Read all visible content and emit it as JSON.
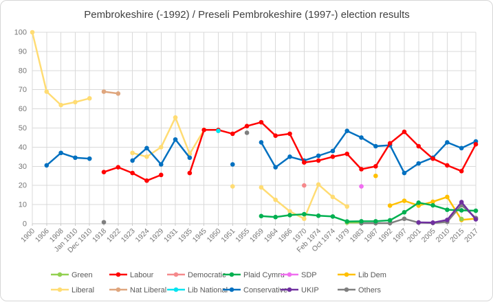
{
  "chart_data": {
    "type": "line",
    "title": "Pembrokeshire (-1992) / Preseli Pembrokeshire (1997-) election results",
    "xlabel": "",
    "ylabel": "",
    "ylim": [
      0,
      100
    ],
    "ytick_interval": 10,
    "grid": true,
    "legend_position": "bottom",
    "categories": [
      "1900",
      "1906",
      "1908",
      "Jan 1910",
      "Dec 1910",
      "1918",
      "1922",
      "1923",
      "1924",
      "1929",
      "1931",
      "1935",
      "1945",
      "1950",
      "1951",
      "1955",
      "1959",
      "1964",
      "1966",
      "1970",
      "Feb 1974",
      "Oct 1974",
      "1979",
      "1983",
      "1987",
      "1992",
      "1997",
      "2001",
      "2005",
      "2010",
      "2015",
      "2017"
    ],
    "series": [
      {
        "name": "Liberal",
        "color": "#FFDC73",
        "values": [
          100,
          69,
          62,
          63.5,
          65.5,
          null,
          null,
          37,
          35,
          40,
          55.5,
          36.5,
          49,
          null,
          19.5,
          null,
          19,
          12.5,
          6.5,
          2.6,
          20.5,
          14,
          9,
          null,
          null,
          null,
          null,
          null,
          null,
          null,
          null,
          null
        ]
      },
      {
        "name": "Nat Liberal",
        "color": "#DFA67E",
        "values": [
          null,
          null,
          null,
          null,
          null,
          69,
          68,
          null,
          null,
          null,
          null,
          null,
          null,
          null,
          null,
          null,
          null,
          null,
          null,
          null,
          null,
          null,
          null,
          null,
          null,
          null,
          null,
          null,
          null,
          null,
          null,
          null
        ]
      },
      {
        "name": "Democratic",
        "color": "#F5898C",
        "values": [
          null,
          null,
          null,
          null,
          null,
          null,
          null,
          null,
          null,
          null,
          null,
          null,
          null,
          null,
          null,
          null,
          null,
          null,
          null,
          20,
          null,
          null,
          null,
          null,
          null,
          null,
          null,
          null,
          null,
          null,
          null,
          null
        ]
      },
      {
        "name": "SDP",
        "color": "#F06EF0",
        "values": [
          null,
          null,
          null,
          null,
          null,
          null,
          null,
          null,
          null,
          null,
          null,
          null,
          null,
          null,
          null,
          null,
          null,
          null,
          null,
          null,
          null,
          null,
          null,
          19.5,
          null,
          null,
          null,
          null,
          null,
          null,
          null,
          null
        ]
      },
      {
        "name": "Lib Dem",
        "color": "#FFC000",
        "values": [
          null,
          null,
          null,
          null,
          null,
          null,
          null,
          null,
          null,
          null,
          null,
          null,
          null,
          null,
          null,
          null,
          null,
          null,
          null,
          null,
          null,
          null,
          null,
          null,
          null,
          9.5,
          12,
          9.5,
          11.5,
          14,
          2,
          2.7
        ],
        "isolated": [
          {
            "category": "1987",
            "value": 25
          }
        ]
      },
      {
        "name": "Green",
        "color": "#92D050",
        "values": [
          null,
          null,
          null,
          null,
          null,
          null,
          null,
          null,
          null,
          null,
          null,
          null,
          null,
          null,
          null,
          null,
          null,
          null,
          null,
          null,
          null,
          null,
          0.6,
          0.6,
          null,
          null,
          null,
          null,
          null,
          null,
          2.5,
          null
        ]
      },
      {
        "name": "Others",
        "color": "#7F7F7F",
        "values": [
          null,
          null,
          null,
          null,
          null,
          0.8,
          null,
          null,
          null,
          null,
          null,
          null,
          null,
          null,
          null,
          47.5,
          null,
          null,
          null,
          null,
          null,
          null,
          null,
          0.3,
          0.3,
          0.3,
          2.6,
          0.6,
          0.4,
          1,
          9.7,
          3
        ]
      },
      {
        "name": "Plaid Cymru",
        "color": "#00B050",
        "values": [
          null,
          null,
          null,
          null,
          null,
          null,
          null,
          null,
          null,
          null,
          null,
          null,
          null,
          null,
          null,
          null,
          4,
          3.5,
          4.5,
          5,
          4.2,
          3.8,
          1.2,
          1.3,
          1.3,
          1.8,
          6,
          11,
          9.6,
          7.3,
          7,
          6.8
        ]
      },
      {
        "name": "UKIP",
        "color": "#7030A0",
        "values": [
          null,
          null,
          null,
          null,
          null,
          null,
          null,
          null,
          null,
          null,
          null,
          null,
          null,
          null,
          null,
          null,
          null,
          null,
          null,
          null,
          null,
          null,
          null,
          null,
          null,
          null,
          null,
          0.7,
          0.6,
          2,
          11.3,
          2.3
        ]
      },
      {
        "name": "Conservative",
        "color": "#0070C0",
        "values": [
          null,
          30.5,
          37,
          34.5,
          34,
          null,
          null,
          33,
          39.5,
          31,
          44,
          34.5,
          null,
          null,
          31,
          null,
          42.5,
          29.5,
          35,
          33,
          35.5,
          38,
          48.5,
          45,
          40.5,
          41,
          26.5,
          31.5,
          34.5,
          42.5,
          39.5,
          43
        ]
      },
      {
        "name": "Labour",
        "color": "#FF0000",
        "values": [
          null,
          null,
          null,
          null,
          null,
          27,
          29.5,
          26.5,
          22.5,
          25.5,
          null,
          26.5,
          49,
          49,
          47,
          51,
          53,
          46,
          47,
          32,
          33,
          35,
          36.5,
          28.5,
          30,
          42,
          48,
          40.5,
          34,
          30.5,
          27.5,
          41.5
        ]
      },
      {
        "name": "Lib National",
        "color": "#00E4F0",
        "values": [
          null,
          null,
          null,
          null,
          null,
          null,
          null,
          null,
          null,
          null,
          null,
          null,
          null,
          48.5,
          null,
          null,
          null,
          null,
          null,
          null,
          null,
          null,
          null,
          null,
          null,
          null,
          null,
          null,
          null,
          null,
          null,
          null
        ]
      }
    ],
    "legend_rows": [
      [
        {
          "label": "Green",
          "color": "#92D050"
        },
        {
          "label": "Labour",
          "color": "#FF0000"
        },
        {
          "label": "Democratic",
          "color": "#F5898C"
        },
        {
          "label": "Plaid Cymru",
          "color": "#00B050"
        },
        {
          "label": "SDP",
          "color": "#F06EF0"
        },
        {
          "label": "Lib Dem",
          "color": "#FFC000"
        }
      ],
      [
        {
          "label": "Liberal",
          "color": "#FFDC73"
        },
        {
          "label": "Nat Liberal",
          "color": "#DFA67E"
        },
        {
          "label": "Lib National",
          "color": "#00E4F0"
        },
        {
          "label": "Conservative",
          "color": "#0070C0"
        },
        {
          "label": "UKIP",
          "color": "#7030A0"
        },
        {
          "label": "Others",
          "color": "#7F7F7F"
        }
      ]
    ],
    "grid_color": "#D9D9D9",
    "axis_line_color": "#C9C9C9"
  }
}
